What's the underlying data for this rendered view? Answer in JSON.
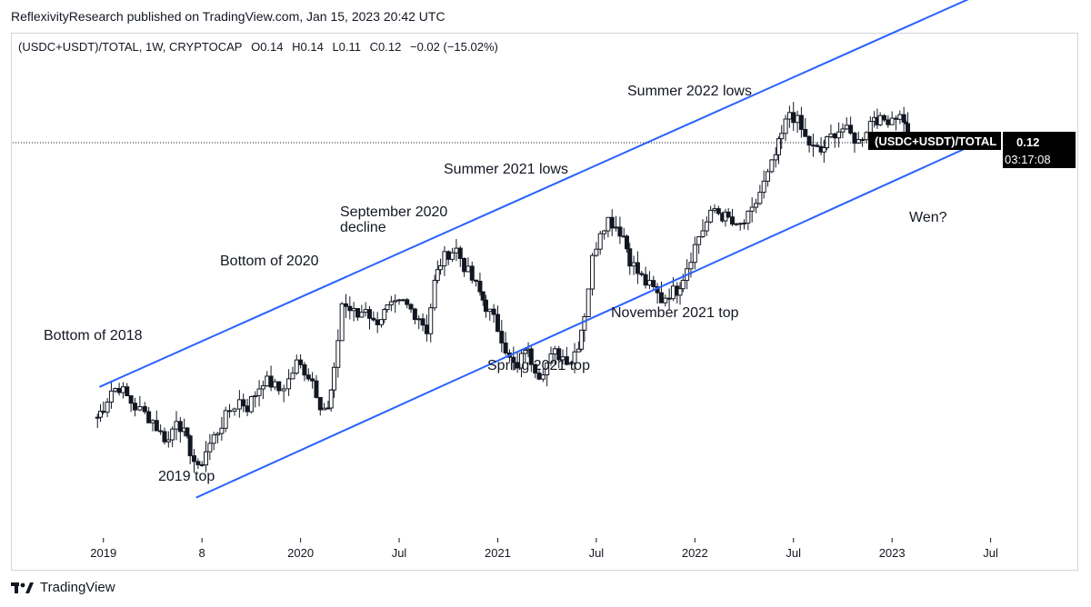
{
  "publisher": {
    "text": "ReflexivityResearch published on TradingView.com, Jan 15, 2023 20:42 UTC"
  },
  "symbol": {
    "name": "(USDC+USDT)/TOTAL, 1W, CRYPTOCAP",
    "open": "O0.14",
    "high": "H0.14",
    "low": "L0.11",
    "close": "C0.12",
    "change": "−0.02 (−15.02%)"
  },
  "price_tag": {
    "series_label": "(USDC+USDT)/TOTAL",
    "value": "0.12",
    "countdown": "03:17:08",
    "color": "#000000"
  },
  "footer": {
    "brand": "TradingView",
    "logo_icon": "tradingview-logo-icon"
  },
  "chart_data": {
    "type": "candlestick",
    "series_label": "(USDC+USDT)/TOTAL",
    "x_tick_labels": [
      "2019",
      "8",
      "2020",
      "Jul",
      "2021",
      "Jul",
      "2022",
      "Jul",
      "2023",
      "Jul"
    ],
    "x_tick_years": [
      2018.96,
      2019.46,
      2019.96,
      2020.46,
      2020.96,
      2021.46,
      2021.96,
      2022.46,
      2022.96,
      2023.46
    ],
    "x_range": [
      2018.5,
      2023.9
    ],
    "y_range": [
      0.0,
      0.15
    ],
    "last_value": 0.12,
    "candle_up_color": "#131722",
    "candle_down_color": "#131722",
    "channel_color": "#2962ff",
    "channel": {
      "upper": [
        [
          2018.94,
          0.045
        ],
        [
          2023.48,
          0.164
        ]
      ],
      "lower": [
        [
          2019.43,
          0.012
        ],
        [
          2023.48,
          0.12
        ]
      ]
    },
    "annotations": [
      {
        "text": "Bottom of 2018"
      },
      {
        "text": "2019 top"
      },
      {
        "text": "Bottom of 2020"
      },
      {
        "text": "September 2020"
      },
      {
        "text": "decline"
      },
      {
        "text": "Spring 2021 top"
      },
      {
        "text": "Summer 2021 lows"
      },
      {
        "text": "November 2021 top"
      },
      {
        "text": "Summer 2022 lows"
      },
      {
        "text": "Wen?"
      }
    ],
    "weekly_close": [
      [
        2018.93,
        0.036
      ],
      [
        2018.96,
        0.039
      ],
      [
        2019.0,
        0.044
      ],
      [
        2019.04,
        0.045
      ],
      [
        2019.08,
        0.042
      ],
      [
        2019.12,
        0.039
      ],
      [
        2019.17,
        0.037
      ],
      [
        2019.21,
        0.035
      ],
      [
        2019.25,
        0.031
      ],
      [
        2019.29,
        0.029
      ],
      [
        2019.33,
        0.036
      ],
      [
        2019.37,
        0.031
      ],
      [
        2019.4,
        0.026
      ],
      [
        2019.44,
        0.02
      ],
      [
        2019.48,
        0.026
      ],
      [
        2019.52,
        0.03
      ],
      [
        2019.56,
        0.034
      ],
      [
        2019.6,
        0.038
      ],
      [
        2019.65,
        0.041
      ],
      [
        2019.69,
        0.039
      ],
      [
        2019.73,
        0.043
      ],
      [
        2019.77,
        0.047
      ],
      [
        2019.81,
        0.046
      ],
      [
        2019.85,
        0.044
      ],
      [
        2019.9,
        0.047
      ],
      [
        2019.94,
        0.052
      ],
      [
        2019.98,
        0.05
      ],
      [
        2020.02,
        0.047
      ],
      [
        2020.06,
        0.04
      ],
      [
        2020.1,
        0.038
      ],
      [
        2020.13,
        0.049
      ],
      [
        2020.17,
        0.07
      ],
      [
        2020.21,
        0.068
      ],
      [
        2020.25,
        0.066
      ],
      [
        2020.29,
        0.069
      ],
      [
        2020.33,
        0.064
      ],
      [
        2020.37,
        0.066
      ],
      [
        2020.4,
        0.068
      ],
      [
        2020.44,
        0.069
      ],
      [
        2020.48,
        0.07
      ],
      [
        2020.52,
        0.068
      ],
      [
        2020.56,
        0.066
      ],
      [
        2020.6,
        0.062
      ],
      [
        2020.64,
        0.076
      ],
      [
        2020.67,
        0.082
      ],
      [
        2020.71,
        0.085
      ],
      [
        2020.75,
        0.086
      ],
      [
        2020.79,
        0.081
      ],
      [
        2020.83,
        0.077
      ],
      [
        2020.87,
        0.073
      ],
      [
        2020.9,
        0.069
      ],
      [
        2020.94,
        0.065
      ],
      [
        2020.98,
        0.06
      ],
      [
        2021.02,
        0.053
      ],
      [
        2021.06,
        0.05
      ],
      [
        2021.1,
        0.057
      ],
      [
        2021.13,
        0.053
      ],
      [
        2021.17,
        0.049
      ],
      [
        2021.21,
        0.052
      ],
      [
        2021.25,
        0.055
      ],
      [
        2021.29,
        0.054
      ],
      [
        2021.33,
        0.053
      ],
      [
        2021.37,
        0.058
      ],
      [
        2021.4,
        0.067
      ],
      [
        2021.44,
        0.083
      ],
      [
        2021.48,
        0.092
      ],
      [
        2021.52,
        0.095
      ],
      [
        2021.56,
        0.093
      ],
      [
        2021.6,
        0.09
      ],
      [
        2021.63,
        0.083
      ],
      [
        2021.67,
        0.079
      ],
      [
        2021.71,
        0.076
      ],
      [
        2021.75,
        0.074
      ],
      [
        2021.79,
        0.071
      ],
      [
        2021.83,
        0.073
      ],
      [
        2021.87,
        0.074
      ],
      [
        2021.9,
        0.078
      ],
      [
        2021.94,
        0.084
      ],
      [
        2021.98,
        0.09
      ],
      [
        2022.02,
        0.094
      ],
      [
        2022.06,
        0.098
      ],
      [
        2022.1,
        0.096
      ],
      [
        2022.13,
        0.095
      ],
      [
        2022.17,
        0.092
      ],
      [
        2022.21,
        0.094
      ],
      [
        2022.25,
        0.097
      ],
      [
        2022.29,
        0.103
      ],
      [
        2022.33,
        0.108
      ],
      [
        2022.37,
        0.114
      ],
      [
        2022.4,
        0.12
      ],
      [
        2022.44,
        0.127
      ],
      [
        2022.48,
        0.124
      ],
      [
        2022.52,
        0.119
      ],
      [
        2022.56,
        0.116
      ],
      [
        2022.6,
        0.115
      ],
      [
        2022.63,
        0.118
      ],
      [
        2022.67,
        0.121
      ],
      [
        2022.71,
        0.122
      ],
      [
        2022.75,
        0.12
      ],
      [
        2022.79,
        0.118
      ],
      [
        2022.83,
        0.122
      ],
      [
        2022.87,
        0.126
      ],
      [
        2022.9,
        0.124
      ],
      [
        2022.94,
        0.125
      ],
      [
        2022.98,
        0.126
      ],
      [
        2023.02,
        0.125
      ],
      [
        2023.04,
        0.12
      ]
    ]
  }
}
